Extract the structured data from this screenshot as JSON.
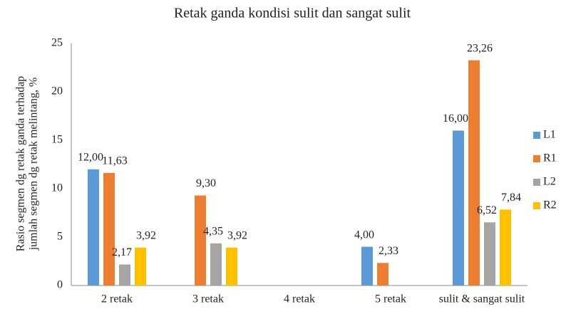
{
  "chart_data": {
    "type": "bar",
    "title": "Retak ganda kondisi sulit dan sangat sulit",
    "y_label": [
      "Rasio segmen dg retak ganda terhadap",
      "jumlah segmen dg retak melintang, %"
    ],
    "categories": [
      "2 retak",
      "3 retak",
      "4 retak",
      "5 retak",
      "sulit & sangat sulit"
    ],
    "series": [
      {
        "name": "L1",
        "color": "#5b9bd5",
        "values": [
          12.0,
          null,
          null,
          4.0,
          16.0
        ],
        "value_labels": [
          "12,00",
          null,
          null,
          "4,00",
          "16,00"
        ]
      },
      {
        "name": "R1",
        "color": "#ed7d31",
        "values": [
          11.63,
          9.3,
          null,
          2.33,
          23.26
        ],
        "value_labels": [
          "11,63",
          "9,30",
          null,
          "2,33",
          "23,26"
        ]
      },
      {
        "name": "L2",
        "color": "#a5a5a5",
        "values": [
          2.17,
          4.35,
          null,
          null,
          6.52
        ],
        "value_labels": [
          "2,17",
          "4,35",
          null,
          null,
          "6,52"
        ]
      },
      {
        "name": "R2",
        "color": "#ffc000",
        "values": [
          3.92,
          3.92,
          null,
          null,
          7.84
        ],
        "value_labels": [
          "3,92",
          "3,92",
          null,
          null,
          "7,84"
        ]
      }
    ],
    "ylim": [
      0,
      25
    ],
    "yticks": [
      0,
      5,
      10,
      15,
      20,
      25
    ],
    "grid": false,
    "legend": "right"
  }
}
